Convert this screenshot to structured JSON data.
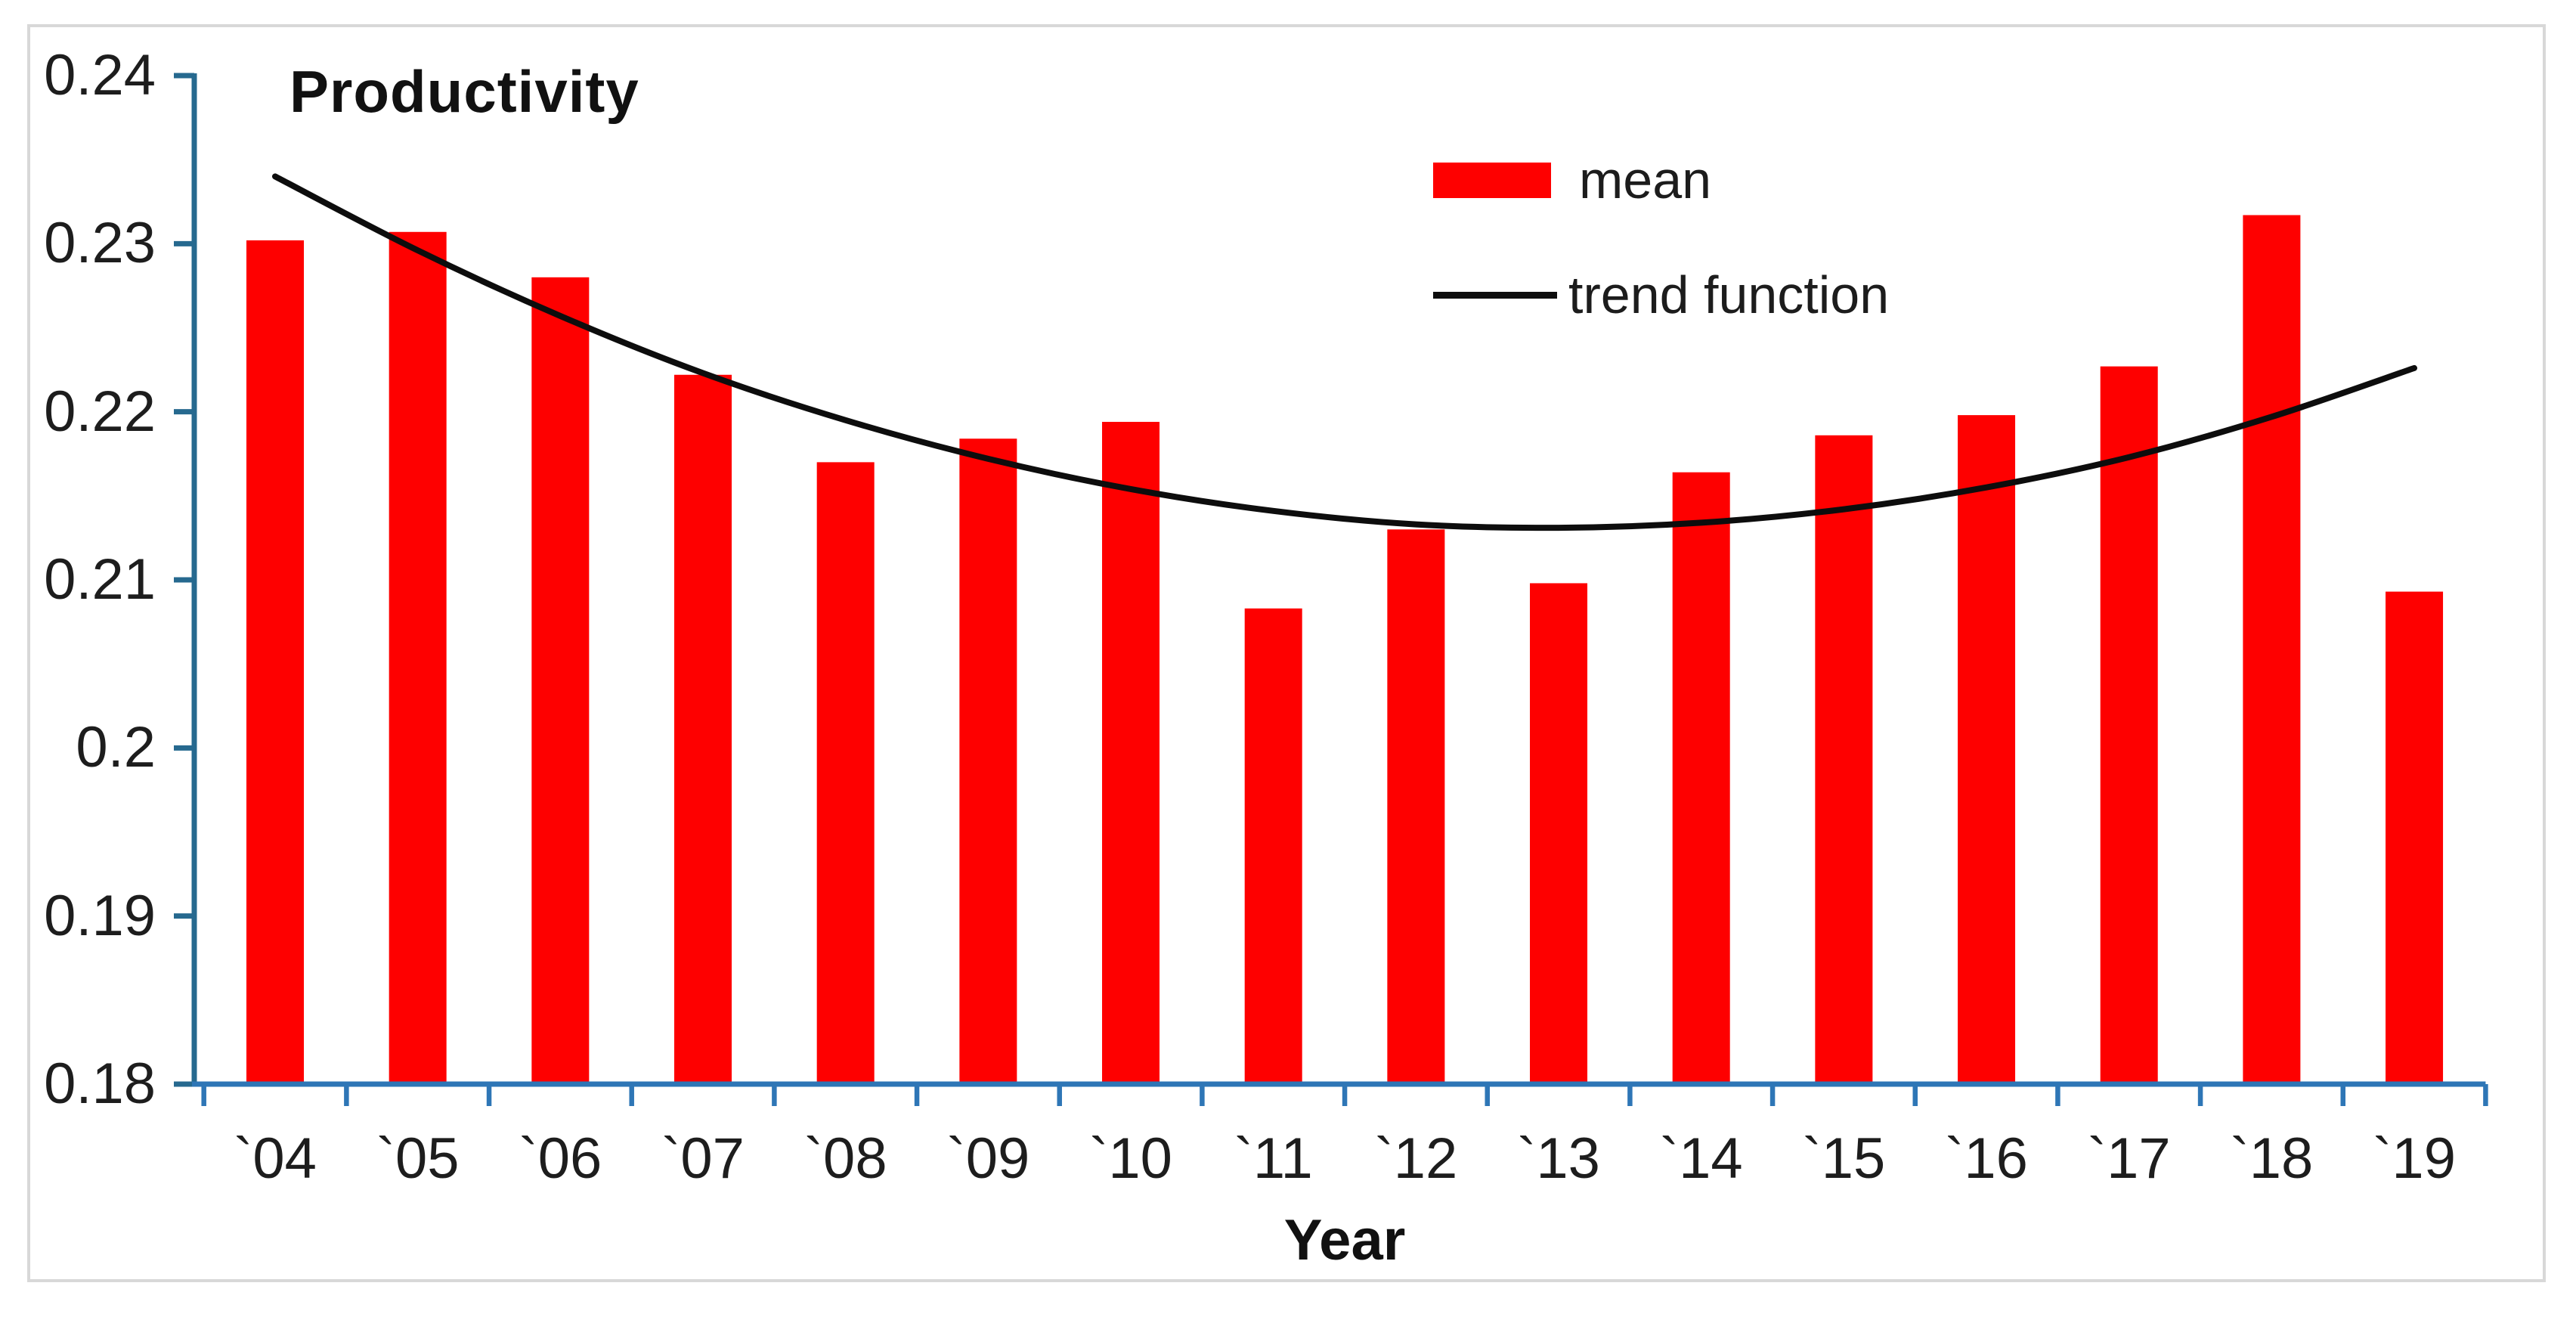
{
  "chart_data": {
    "type": "bar",
    "title": "Productivity",
    "xlabel": "Year",
    "ylabel": "",
    "categories": [
      "`04",
      "`05",
      "`06",
      "`07",
      "`08",
      "`09",
      "`10",
      "`11",
      "`12",
      "`13",
      "`14",
      "`15",
      "`16",
      "`17",
      "`18",
      "`19"
    ],
    "series": [
      {
        "name": "mean",
        "type": "bar",
        "color": "#fe0000",
        "values": [
          0.2302,
          0.2307,
          0.228,
          0.2222,
          0.217,
          0.2184,
          0.2194,
          0.2083,
          0.213,
          0.2098,
          0.2164,
          0.2186,
          0.2198,
          0.2227,
          0.2317,
          0.2093
        ]
      },
      {
        "name": "trend function",
        "type": "line",
        "color": "#0d0d0d",
        "values": [
          0.234,
          0.2296,
          0.2257,
          0.2223,
          0.2195,
          0.2172,
          0.2154,
          0.2141,
          0.2133,
          0.2131,
          0.2134,
          0.2142,
          0.2155,
          0.2173,
          0.2197,
          0.2226
        ]
      }
    ],
    "ylim": [
      0.18,
      0.24
    ],
    "ytick_labels": [
      "0.18",
      "0.19",
      "0.2",
      "0.21",
      "0.22",
      "0.23",
      "0.24"
    ],
    "grid": false,
    "legend_position": "inside-top-right",
    "axis_color_x": "#2e76b6",
    "axis_color_y": "#26698f",
    "frame_color": "#d8d8d8"
  }
}
